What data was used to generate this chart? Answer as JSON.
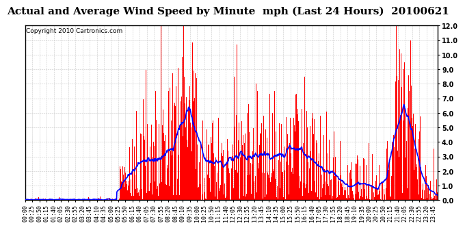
{
  "title": "Actual and Average Wind Speed by Minute  mph (Last 24 Hours)  20100621",
  "copyright": "Copyright 2010 Cartronics.com",
  "ylim": [
    0.0,
    12.0
  ],
  "yticks": [
    0.0,
    1.0,
    2.0,
    3.0,
    4.0,
    5.0,
    6.0,
    7.0,
    8.0,
    9.0,
    10.0,
    11.0,
    12.0
  ],
  "bar_color": "#ff0000",
  "line_color": "#0000ff",
  "background_color": "#ffffff",
  "grid_color": "#c8c8c8",
  "title_fontsize": 11,
  "copyright_fontsize": 6.5,
  "tick_fontsize": 6,
  "tick_step": 25
}
